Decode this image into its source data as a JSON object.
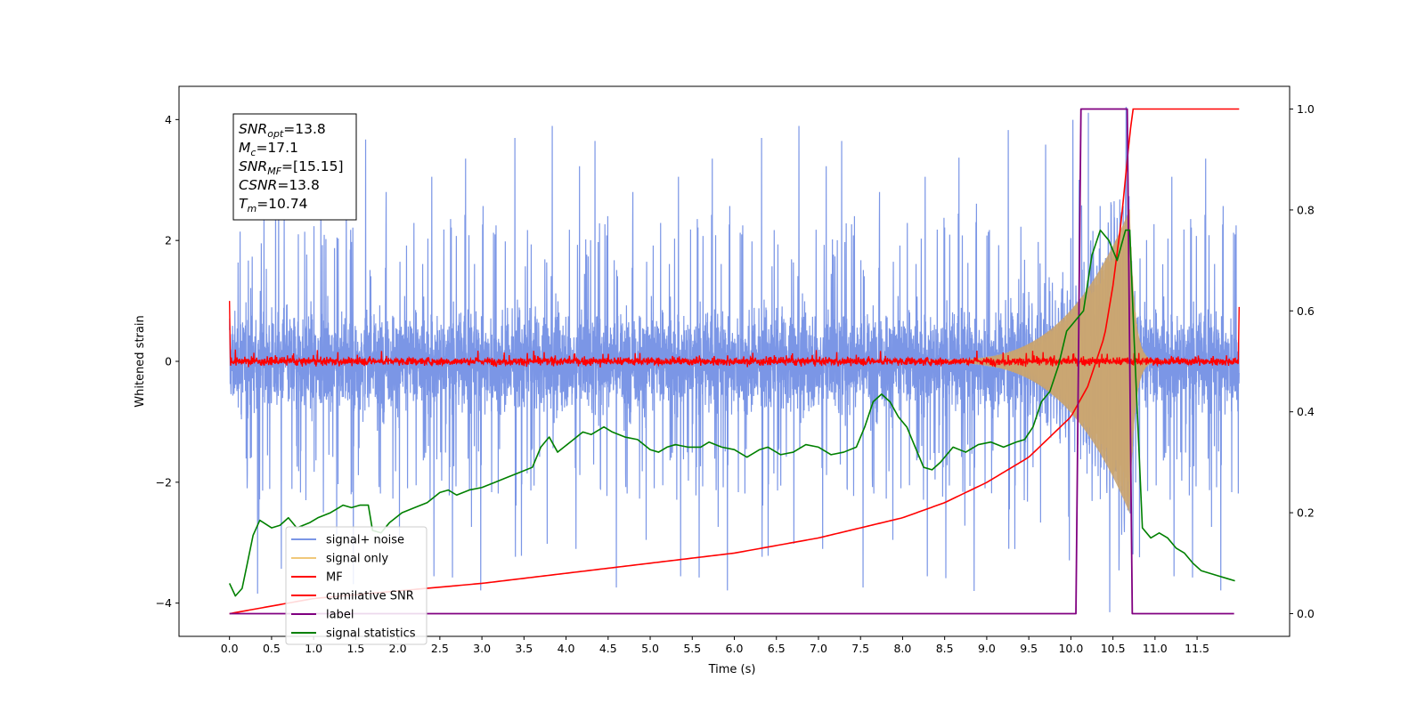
{
  "chart_data": {
    "type": "line",
    "title": "",
    "xlabel": "Time (s)",
    "ylabel": "Whitened strain",
    "xlim": [
      -0.6,
      12.6
    ],
    "ylim": [
      -4.55,
      4.55
    ],
    "y2lim": [
      -0.045,
      1.045
    ],
    "x_ticks": [
      "0.0",
      "0.5",
      "1.0",
      "1.5",
      "2.0",
      "2.5",
      "3.0",
      "3.5",
      "4.0",
      "4.5",
      "5.0",
      "5.5",
      "6.0",
      "6.5",
      "7.0",
      "7.5",
      "8.0",
      "8.5",
      "9.0",
      "9.5",
      "10.0",
      "10.5",
      "11.0",
      "11.5"
    ],
    "y_ticks": [
      "4",
      "2",
      "0",
      "−2",
      "−4"
    ],
    "y2_ticks": [
      "1.0",
      "0.8",
      "0.6",
      "0.4",
      "0.2",
      "0.0"
    ],
    "grid": false,
    "legend_position": "lower-left",
    "annotation": [
      {
        "base": "SNR",
        "sub": "opt",
        "value": "=13.8"
      },
      {
        "base": "M",
        "sub": "c",
        "value": "=17.1"
      },
      {
        "base": "SNR",
        "sub": "MF",
        "value": "=[15.15]"
      },
      {
        "base": "CSNR",
        "sub": "",
        "value": "=13.8"
      },
      {
        "base": "T",
        "sub": "m",
        "value": "=10.74"
      }
    ],
    "series": [
      {
        "name": "signal+ noise",
        "axis": "left",
        "color": "#7b96e6",
        "description": "noise band roughly ±1.5 with spikes up to about 4.2 and down to about -4.1 across 0.0-12.0 s"
      },
      {
        "name": "signal only",
        "axis": "left",
        "color": "#f0c87a",
        "description": "chirp envelope growing from ~0 at 8.3 s to ~±2.5 at 10.7 s then decaying"
      },
      {
        "name": "MF",
        "axis": "left",
        "color": "#ff0000",
        "description": "matched-filter output near 0 (±0.15) from 0 to 12 s"
      },
      {
        "name": "cumilative SNR",
        "axis": "right",
        "color": "#ff0000",
        "x": [
          0.0,
          1.0,
          2.0,
          3.0,
          4.0,
          5.0,
          6.0,
          7.0,
          8.0,
          8.5,
          9.0,
          9.5,
          10.0,
          10.2,
          10.4,
          10.5,
          10.6,
          10.7,
          10.74,
          11.0,
          12.0
        ],
        "y": [
          0.0,
          0.03,
          0.045,
          0.06,
          0.08,
          0.1,
          0.12,
          0.15,
          0.19,
          0.22,
          0.26,
          0.31,
          0.39,
          0.45,
          0.55,
          0.65,
          0.78,
          0.95,
          1.0,
          1.0,
          1.0
        ]
      },
      {
        "name": "label",
        "axis": "right",
        "color": "#800080",
        "x": [
          0.0,
          10.06,
          10.12,
          10.67,
          10.73,
          11.94
        ],
        "y": [
          0.0,
          0.0,
          1.0,
          1.0,
          0.0,
          0.0
        ]
      },
      {
        "name": "signal statistics",
        "axis": "right",
        "color": "#008000",
        "x": [
          0.0,
          0.07,
          0.15,
          0.2,
          0.28,
          0.36,
          0.5,
          0.6,
          0.7,
          0.8,
          0.95,
          1.05,
          1.2,
          1.35,
          1.45,
          1.55,
          1.65,
          1.7,
          1.8,
          1.9,
          2.05,
          2.2,
          2.35,
          2.5,
          2.6,
          2.7,
          2.85,
          3.0,
          3.15,
          3.3,
          3.45,
          3.6,
          3.7,
          3.8,
          3.9,
          4.05,
          4.2,
          4.3,
          4.45,
          4.55,
          4.7,
          4.85,
          5.0,
          5.1,
          5.2,
          5.3,
          5.45,
          5.6,
          5.7,
          5.85,
          6.0,
          6.15,
          6.3,
          6.4,
          6.55,
          6.7,
          6.85,
          7.0,
          7.15,
          7.3,
          7.45,
          7.55,
          7.65,
          7.75,
          7.85,
          7.95,
          8.05,
          8.15,
          8.25,
          8.35,
          8.45,
          8.6,
          8.75,
          8.9,
          9.05,
          9.2,
          9.35,
          9.45,
          9.55,
          9.65,
          9.75,
          9.85,
          9.95,
          10.05,
          10.15,
          10.25,
          10.35,
          10.45,
          10.55,
          10.65,
          10.7,
          10.75,
          10.85,
          10.95,
          11.05,
          11.15,
          11.25,
          11.35,
          11.45,
          11.55,
          11.65,
          11.75,
          11.85,
          11.95
        ],
        "y": [
          0.06,
          0.035,
          0.05,
          0.09,
          0.155,
          0.185,
          0.17,
          0.175,
          0.19,
          0.17,
          0.18,
          0.19,
          0.2,
          0.215,
          0.21,
          0.215,
          0.215,
          0.165,
          0.16,
          0.18,
          0.2,
          0.21,
          0.22,
          0.24,
          0.245,
          0.235,
          0.245,
          0.25,
          0.26,
          0.27,
          0.28,
          0.29,
          0.33,
          0.35,
          0.32,
          0.34,
          0.36,
          0.355,
          0.37,
          0.36,
          0.35,
          0.345,
          0.325,
          0.32,
          0.33,
          0.335,
          0.33,
          0.33,
          0.34,
          0.33,
          0.325,
          0.31,
          0.325,
          0.33,
          0.315,
          0.32,
          0.335,
          0.33,
          0.315,
          0.32,
          0.33,
          0.37,
          0.42,
          0.435,
          0.42,
          0.39,
          0.37,
          0.33,
          0.29,
          0.285,
          0.3,
          0.33,
          0.32,
          0.335,
          0.34,
          0.33,
          0.34,
          0.345,
          0.37,
          0.42,
          0.44,
          0.49,
          0.56,
          0.58,
          0.6,
          0.71,
          0.76,
          0.74,
          0.7,
          0.76,
          0.76,
          0.55,
          0.17,
          0.15,
          0.16,
          0.15,
          0.13,
          0.12,
          0.1,
          0.085,
          0.08,
          0.075,
          0.07,
          0.065
        ]
      }
    ]
  }
}
